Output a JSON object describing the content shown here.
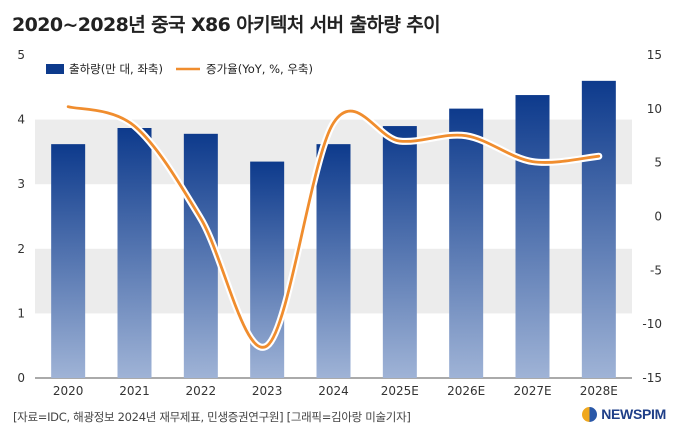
{
  "title": "2020~2028년 중국 X86 아키텍처 서버 출하량 추이",
  "footer": {
    "source": "[자료=IDC, 해광정보 2024년 재무제표, 민생증권연구원] [그래픽=김아랑 미술기자]",
    "logo": "NEWSPIM"
  },
  "colors": {
    "bar_top": "#0d3a8c",
    "bar_bottom": "#9fb3d6",
    "line": "#f08d2e",
    "band": "#ececec"
  },
  "chart_data": {
    "type": "bar",
    "categories": [
      "2020",
      "2021",
      "2022",
      "2023",
      "2024",
      "2025E",
      "2026E",
      "2027E",
      "2028E"
    ],
    "series": [
      {
        "name": "출하량(만 대, 좌축)",
        "type": "bar",
        "axis": "left",
        "values": [
          3.62,
          3.87,
          3.78,
          3.35,
          3.62,
          3.9,
          4.17,
          4.38,
          4.6
        ]
      },
      {
        "name": "증가율(YoY, %, 우축)",
        "type": "line",
        "axis": "right",
        "values": [
          10.2,
          8.4,
          -0.2,
          -12.0,
          8.7,
          7.0,
          7.5,
          5.1,
          5.6
        ]
      }
    ],
    "y_left": {
      "min": 0,
      "max": 5,
      "ticks": [
        "0",
        "1",
        "2",
        "3",
        "4",
        "5"
      ]
    },
    "y_right": {
      "min": -15,
      "max": 15,
      "ticks": [
        "-15",
        "-10",
        "-5",
        "0",
        "5",
        "10",
        "15"
      ]
    },
    "legend": [
      "출하량(만 대, 좌축)",
      "증가율(YoY, %, 우축)"
    ],
    "legend_position": "top-left"
  }
}
